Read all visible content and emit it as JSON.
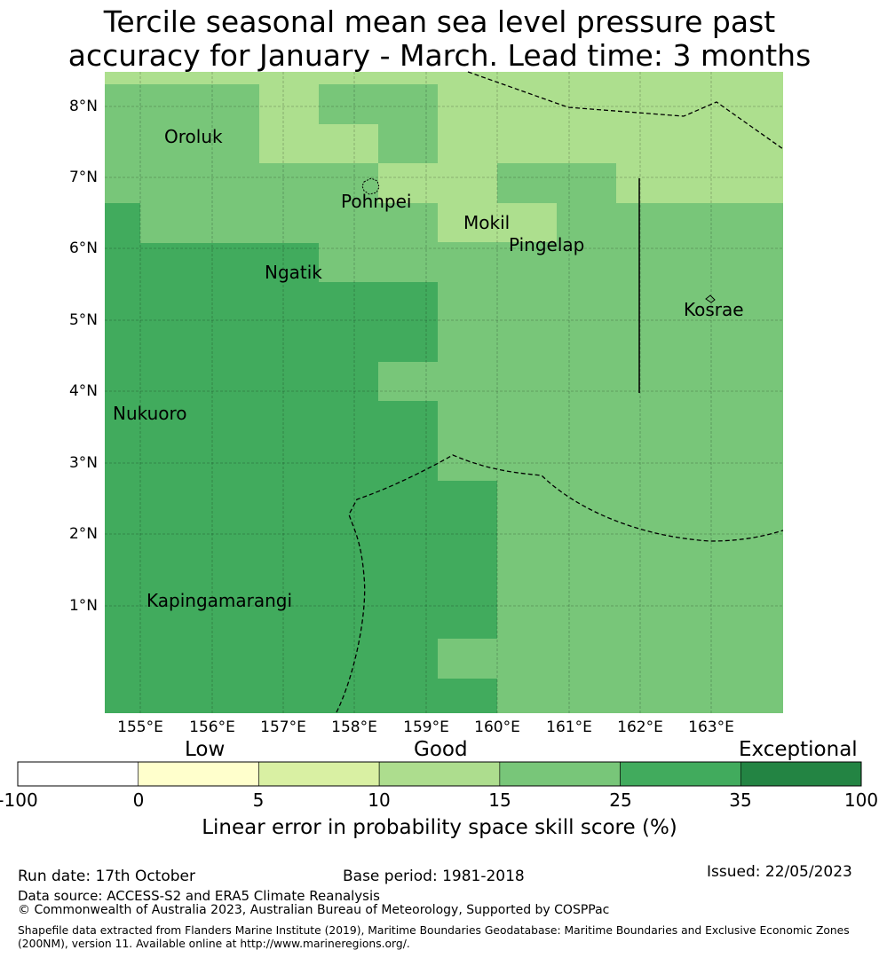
{
  "title": {
    "line1": "Tercile seasonal mean sea level pressure past",
    "line2": "accuracy for January - March. Lead time: 3 months"
  },
  "map": {
    "lat_labels": [
      "8°N",
      "7°N",
      "6°N",
      "5°N",
      "4°N",
      "3°N",
      "2°N",
      "1°N"
    ],
    "lon_labels": [
      "155°E",
      "156°E",
      "157°E",
      "158°E",
      "159°E",
      "160°E",
      "161°E",
      "162°E",
      "163°E"
    ],
    "places": [
      "Oroluk",
      "Pohnpei",
      "Mokil",
      "Pingelap",
      "Ngatik",
      "Kosrae",
      "Nukuoro",
      "Kapingamarangi"
    ],
    "extent": {
      "lon_min": 154.5,
      "lon_max": 164.0,
      "lat_min": -0.25,
      "lat_max": 8.5
    },
    "grid": "on",
    "colors": {
      "c10_15": "#addf8e",
      "c15_25": "#78c679",
      "c25_35": "#41ab5d"
    }
  },
  "colorbar": {
    "categories": [
      "Low",
      "Good",
      "Exceptional"
    ],
    "ticks": [
      "-100",
      "0",
      "5",
      "10",
      "15",
      "25",
      "35",
      "100"
    ],
    "colors": [
      "#ffffff",
      "#ffffcc",
      "#d9f0a3",
      "#addd8e",
      "#78c679",
      "#41ab5d",
      "#238443"
    ],
    "title": "Linear error in probability space skill score (%)"
  },
  "footer": {
    "run_date": "Run date: 17th October",
    "base_period": "Base period: 1981-2018",
    "issued": "Issued: 22/05/2023",
    "data_source": "Data source: ACCESS-S2 and ERA5 Climate Reanalysis",
    "copyright": "© Commonwealth of Australia 2023, Australian Bureau of Meteorology, Supported by COSPPac",
    "shapefile_line1": "Shapefile data extracted from Flanders Marine Institute (2019), Maritime Boundaries Geodatabase: Maritime Boundaries and Exclusive Economic Zones",
    "shapefile_line2": "(200NM), version 11. Available online at http://www.marineregions.org/."
  }
}
